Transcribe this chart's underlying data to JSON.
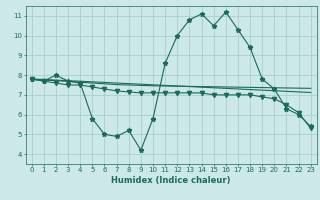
{
  "title": "",
  "xlabel": "Humidex (Indice chaleur)",
  "ylabel": "",
  "bg_color": "#cce8e8",
  "line_color": "#1a6b5a",
  "grid_color": "#aacfcf",
  "xlim": [
    -0.5,
    23.5
  ],
  "ylim": [
    3.5,
    11.5
  ],
  "xticks": [
    0,
    1,
    2,
    3,
    4,
    5,
    6,
    7,
    8,
    9,
    10,
    11,
    12,
    13,
    14,
    15,
    16,
    17,
    18,
    19,
    20,
    21,
    22,
    23
  ],
  "yticks": [
    4,
    5,
    6,
    7,
    8,
    9,
    10,
    11
  ],
  "series": [
    {
      "x": [
        0,
        1,
        2,
        3,
        4,
        5,
        6,
        7,
        8,
        9,
        10,
        11,
        12,
        13,
        14,
        15,
        16,
        17,
        18,
        19,
        20,
        21,
        22,
        23
      ],
      "y": [
        7.8,
        7.7,
        8.0,
        7.7,
        7.6,
        5.8,
        5.0,
        4.9,
        5.2,
        4.2,
        5.8,
        8.6,
        10.0,
        10.8,
        11.1,
        10.5,
        11.2,
        10.3,
        9.4,
        7.8,
        7.3,
        6.3,
        6.0,
        5.4
      ],
      "marker": "*",
      "markersize": 3.5
    },
    {
      "x": [
        0,
        1,
        2,
        3,
        4,
        5,
        6,
        7,
        8,
        9,
        10,
        11,
        12,
        13,
        14,
        15,
        16,
        17,
        18,
        19,
        20,
        21,
        22,
        23
      ],
      "y": [
        7.8,
        7.75,
        7.72,
        7.68,
        7.64,
        7.6,
        7.56,
        7.52,
        7.5,
        7.48,
        7.46,
        7.45,
        7.44,
        7.43,
        7.42,
        7.41,
        7.4,
        7.39,
        7.38,
        7.37,
        7.36,
        7.35,
        7.34,
        7.33
      ],
      "marker": null,
      "markersize": 0
    },
    {
      "x": [
        0,
        1,
        2,
        3,
        4,
        5,
        6,
        7,
        8,
        9,
        10,
        11,
        12,
        13,
        14,
        15,
        16,
        17,
        18,
        19,
        20,
        21,
        22,
        23
      ],
      "y": [
        7.8,
        7.78,
        7.75,
        7.72,
        7.69,
        7.66,
        7.63,
        7.6,
        7.57,
        7.54,
        7.51,
        7.48,
        7.45,
        7.42,
        7.39,
        7.36,
        7.33,
        7.3,
        7.27,
        7.24,
        7.21,
        7.18,
        7.15,
        7.12
      ],
      "marker": null,
      "markersize": 0
    },
    {
      "x": [
        0,
        1,
        2,
        3,
        4,
        5,
        6,
        7,
        8,
        9,
        10,
        11,
        12,
        13,
        14,
        15,
        16,
        17,
        18,
        19,
        20,
        21,
        22,
        23
      ],
      "y": [
        7.8,
        7.7,
        7.6,
        7.5,
        7.5,
        7.4,
        7.3,
        7.2,
        7.15,
        7.1,
        7.1,
        7.1,
        7.1,
        7.1,
        7.1,
        7.0,
        7.0,
        7.0,
        7.0,
        6.9,
        6.8,
        6.5,
        6.1,
        5.3
      ],
      "marker": "v",
      "markersize": 3
    }
  ]
}
